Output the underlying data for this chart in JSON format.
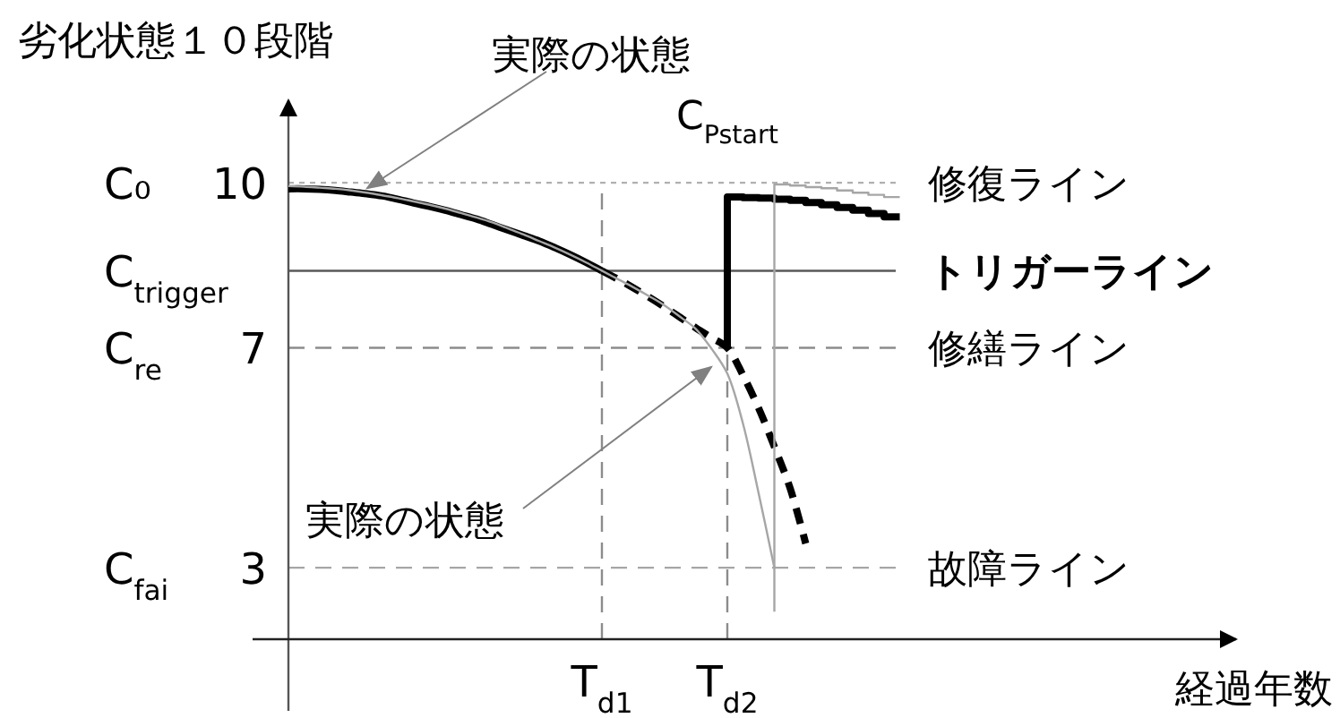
{
  "chart_data": {
    "type": "line",
    "ylabel": "劣化状態１０段階",
    "xlabel": "経過年数",
    "categories": [
      null,
      null,
      null,
      null,
      null,
      null,
      null,
      null,
      null,
      null,
      null,
      null,
      null,
      null,
      null,
      null,
      null,
      null,
      null,
      null,
      "T$_{d1}$",
      null,
      null,
      null,
      null,
      null,
      null,
      null,
      "T$_{d2}$",
      null,
      null,
      null,
      null,
      null,
      null,
      null,
      null,
      null,
      null,
      null,
      null,
      null,
      null,
      null,
      null,
      null,
      null,
      null,
      null,
      null,
      null,
      null,
      null,
      null,
      null,
      null,
      null,
      null,
      null,
      null,
      null
    ],
    "ylim": [
      1.7,
      11.5
    ],
    "yticks": [
      3,
      7,
      10
    ],
    "series": [
      {
        "color": "#000000",
        "line_style": "solid",
        "values": [
          9.89,
          9.89,
          9.88,
          9.86,
          9.83,
          9.8,
          9.76,
          9.7,
          9.63,
          9.57,
          9.5,
          9.42,
          9.34,
          9.24,
          9.14,
          9.04,
          8.94,
          8.82,
          8.69,
          8.55,
          8.4,
          null,
          null,
          null,
          null,
          null,
          null,
          null,
          null,
          null,
          null,
          null,
          null,
          null,
          null,
          null,
          null,
          null,
          null,
          null,
          null,
          null,
          null,
          null,
          null,
          null,
          null,
          null,
          null,
          null,
          null,
          null,
          null,
          null,
          null,
          null,
          null,
          null,
          null,
          null,
          null
        ]
      },
      {
        "color": "#000000",
        "line_style": "dashed",
        "values": [
          null,
          null,
          null,
          null,
          null,
          null,
          null,
          null,
          null,
          null,
          null,
          null,
          null,
          null,
          null,
          null,
          null,
          null,
          null,
          null,
          8.4,
          8.25,
          8.09,
          7.92,
          7.74,
          7.55,
          7.36,
          7.18,
          7.0,
          6.5,
          5.9,
          5.2,
          4.45,
          3.44,
          null,
          null,
          null,
          null,
          null,
          null,
          null,
          null,
          null,
          null,
          null,
          null,
          null,
          null,
          null,
          null,
          null,
          null,
          null,
          null,
          null,
          null,
          null,
          null,
          null,
          null,
          null
        ]
      },
      {
        "type": "step",
        "color": "#000000",
        "line_style": "solid",
        "values": [
          null,
          null,
          null,
          null,
          null,
          null,
          null,
          null,
          null,
          null,
          null,
          null,
          null,
          null,
          null,
          null,
          null,
          null,
          null,
          null,
          null,
          null,
          null,
          null,
          null,
          null,
          null,
          null,
          7.0,
          9.74,
          9.73,
          9.72,
          9.7,
          9.68,
          9.64,
          9.6,
          9.55,
          9.5,
          9.44,
          9.38,
          null,
          null,
          null,
          null,
          null,
          null,
          null,
          null,
          null,
          null,
          null,
          null,
          null,
          null,
          null,
          null,
          null,
          null,
          null,
          null,
          null
        ]
      },
      {
        "color": "#a6a6a6",
        "line_style": "solid",
        "values": [
          9.94,
          9.93,
          9.91,
          9.89,
          9.86,
          9.82,
          9.77,
          9.72,
          9.66,
          9.6,
          9.53,
          9.45,
          9.37,
          9.28,
          9.17,
          9.06,
          8.94,
          8.82,
          8.69,
          8.55,
          8.4,
          8.25,
          8.1,
          7.94,
          7.77,
          7.56,
          7.34,
          6.98,
          6.53,
          5.62,
          4.35,
          3.0,
          null,
          null,
          null,
          null,
          null,
          null,
          null,
          null,
          null,
          null,
          null,
          null,
          null,
          null,
          null,
          null,
          null,
          null,
          null,
          null,
          null,
          null,
          null,
          null,
          null,
          null,
          null,
          null,
          null
        ]
      },
      {
        "type": "step",
        "color": "#a6a6a6",
        "line_style": "solid",
        "values": [
          null,
          null,
          null,
          null,
          null,
          null,
          null,
          null,
          null,
          null,
          null,
          null,
          null,
          null,
          null,
          null,
          null,
          null,
          null,
          null,
          null,
          null,
          null,
          null,
          null,
          null,
          null,
          null,
          null,
          null,
          null,
          2.2,
          9.97,
          9.95,
          9.92,
          9.9,
          9.86,
          9.82,
          9.78,
          9.74,
          null,
          null,
          null,
          null,
          null,
          null,
          null,
          null,
          null,
          null,
          null,
          null,
          null,
          null,
          null,
          null,
          null,
          null,
          null,
          null,
          null
        ]
      }
    ],
    "ref_lines": [
      {
        "axis": "y",
        "value": 10,
        "label": "修復ライン",
        "color": "#b0b0b0",
        "line_style": "dotted"
      },
      {
        "axis": "y",
        "value": 8.4,
        "label": "トリガーライン",
        "color": "#595959",
        "line_style": "solid"
      },
      {
        "axis": "y",
        "value": 7,
        "label": "修繕ライン",
        "color": "#8c8c8c",
        "line_style": "dashed"
      },
      {
        "axis": "y",
        "value": 3,
        "label": "故障ライン",
        "color": "#a6a6a6",
        "line_style": "dashed"
      },
      {
        "axis": "x",
        "value": "T$_{d1}$",
        "color": "#8c8c8c",
        "line_style": "dashed"
      },
      {
        "axis": "x",
        "value": "T$_{d2}$",
        "color": "#8c8c8c",
        "line_style": "dashed"
      }
    ],
    "annotations": [
      "C₀",
      "C$_{trigger}$",
      "C$_{re}$",
      "C$_{fai}$",
      {
        "text": "C$_{Pstart}$",
        "x": "T$_{d2}$",
        "y": 9.74
      },
      {
        "text": "実際の状態",
        "y": 9.9
      },
      "実際の状態"
    ]
  }
}
